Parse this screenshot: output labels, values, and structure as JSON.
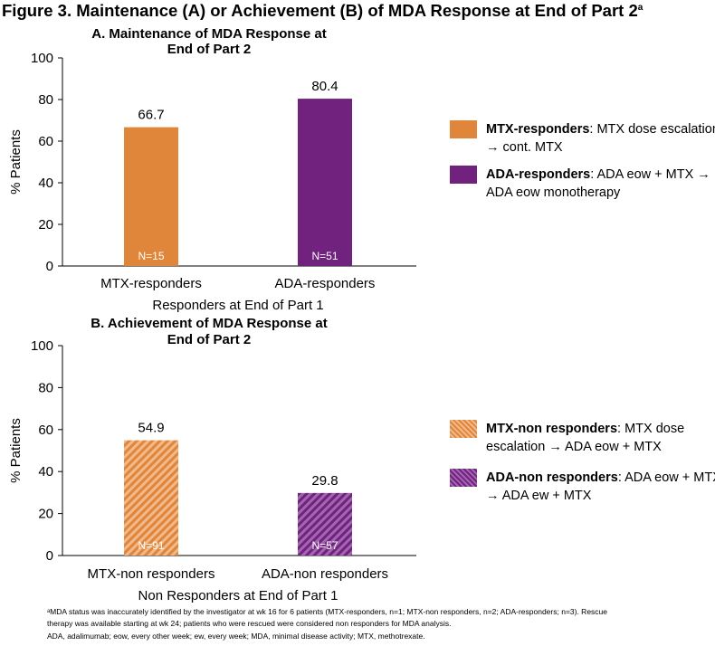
{
  "figure": {
    "title": "Figure 3. Maintenance (A) or Achievement (B) of MDA Response at End of Part 2",
    "title_sup": "a"
  },
  "colors": {
    "mtx": "#E0863A",
    "ada": "#70227E",
    "mtx_hatch_light": "#F2B98A",
    "ada_hatch_light": "#A266B0"
  },
  "chart_data": [
    {
      "type": "bar",
      "panel": "A",
      "title_line1": "A. Maintenance of MDA Response at",
      "title_line2": "End of Part 2",
      "categories": [
        "MTX-responders",
        "ADA-responders"
      ],
      "values": [
        66.7,
        80.4
      ],
      "value_labels": [
        "66.7",
        "80.4"
      ],
      "n_labels": [
        "N=15",
        "N=51"
      ],
      "xlabel": "Responders at End of Part 1",
      "ylabel": "% Patients",
      "ylim": [
        0,
        100
      ],
      "yticks": [
        "0",
        "20",
        "40",
        "60",
        "80",
        "100"
      ],
      "hatched": false,
      "legend": [
        {
          "bold": "MTX-responders",
          "rest": ": MTX dose escalation → cont. MTX"
        },
        {
          "bold": "ADA-responders",
          "rest": ": ADA eow + MTX → ADA eow monotherapy"
        }
      ]
    },
    {
      "type": "bar",
      "panel": "B",
      "title_line1": "B. Achievement of MDA Response at",
      "title_line2": "End of Part 2",
      "categories": [
        "MTX-non responders",
        "ADA-non responders"
      ],
      "values": [
        54.9,
        29.8
      ],
      "value_labels": [
        "54.9",
        "29.8"
      ],
      "n_labels": [
        "N=91",
        "N=57"
      ],
      "xlabel": "Non Responders at End of Part 1",
      "ylabel": "% Patients",
      "ylim": [
        0,
        100
      ],
      "yticks": [
        "0",
        "20",
        "40",
        "60",
        "80",
        "100"
      ],
      "hatched": true,
      "legend": [
        {
          "bold": "MTX-non responders",
          "rest": ": MTX dose escalation → ADA eow + MTX"
        },
        {
          "bold": "ADA-non responders",
          "rest": ": ADA eow + MTX → ADA ew + MTX"
        }
      ]
    }
  ],
  "footnotes": {
    "line1": "ᵃMDA status was inaccurately identified by the investigator at wk 16 for 6 patients (MTX-responders, n=1; MTX-non responders, n=2; ADA-responders; n=3). Rescue",
    "line2": "therapy was available starting at wk 24; patients who were rescued were considered non responders for MDA analysis.",
    "line3": "ADA, adalimumab; eow, every other week; ew, every week; MDA, minimal disease activity; MTX, methotrexate."
  }
}
